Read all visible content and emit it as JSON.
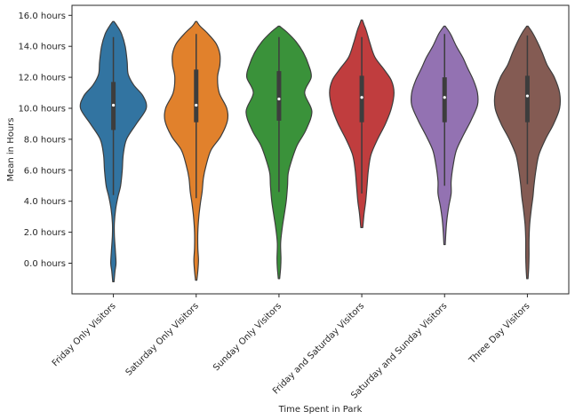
{
  "chart_data": {
    "type": "violin",
    "xlabel": "Time Spent in Park",
    "ylabel": "Mean in Hours",
    "ylim": [
      -2.4,
      16.4
    ],
    "y_ticks": [
      {
        "value": 0,
        "label": "0.0 hours"
      },
      {
        "value": 2,
        "label": "2.0 hours"
      },
      {
        "value": 4,
        "label": "4.0 hours"
      },
      {
        "value": 6,
        "label": "6.0 hours"
      },
      {
        "value": 8,
        "label": "8.0 hours"
      },
      {
        "value": 10,
        "label": "10.0 hours"
      },
      {
        "value": 12,
        "label": "12.0 hours"
      },
      {
        "value": 14,
        "label": "14.0 hours"
      },
      {
        "value": 16,
        "label": "16.0 hours"
      }
    ],
    "grid": false,
    "legend": "none",
    "categories": [
      "Friday Only Visitors",
      "Saturday Only Visitors",
      "Sunday Only Visitors",
      "Friday and Saturday Visitors",
      "Saturday and Sunday Visitors",
      "Three Day Visitors"
    ],
    "series": [
      {
        "category": "Friday Only Visitors",
        "color": "#3274a1",
        "min": -1.2,
        "q1": 8.6,
        "median": 10.2,
        "q3": 11.7,
        "max": 15.6,
        "whisker_low": 4.4,
        "whisker_high": 14.6,
        "density": [
          [
            -1.2,
            0.02
          ],
          [
            -0.5,
            0.05
          ],
          [
            0.0,
            0.08
          ],
          [
            0.8,
            0.06
          ],
          [
            1.8,
            0.03
          ],
          [
            2.6,
            0.03
          ],
          [
            3.5,
            0.07
          ],
          [
            4.3,
            0.14
          ],
          [
            5.0,
            0.22
          ],
          [
            6.0,
            0.27
          ],
          [
            7.0,
            0.3
          ],
          [
            8.0,
            0.4
          ],
          [
            9.0,
            0.7
          ],
          [
            10.0,
            1.0
          ],
          [
            10.8,
            0.9
          ],
          [
            11.5,
            0.62
          ],
          [
            12.2,
            0.45
          ],
          [
            13.0,
            0.42
          ],
          [
            14.0,
            0.36
          ],
          [
            14.8,
            0.25
          ],
          [
            15.3,
            0.12
          ],
          [
            15.6,
            0.02
          ]
        ]
      },
      {
        "category": "Saturday Only Visitors",
        "color": "#e1812c",
        "min": -1.1,
        "q1": 9.1,
        "median": 10.2,
        "q3": 12.5,
        "max": 15.6,
        "whisker_low": 4.2,
        "whisker_high": 14.8,
        "density": [
          [
            -1.1,
            0.02
          ],
          [
            -0.5,
            0.05
          ],
          [
            0.2,
            0.07
          ],
          [
            1.0,
            0.05
          ],
          [
            2.0,
            0.05
          ],
          [
            3.0,
            0.08
          ],
          [
            3.9,
            0.13
          ],
          [
            4.6,
            0.18
          ],
          [
            5.5,
            0.22
          ],
          [
            6.3,
            0.3
          ],
          [
            7.3,
            0.45
          ],
          [
            8.2,
            0.75
          ],
          [
            9.2,
            0.95
          ],
          [
            10.0,
            0.93
          ],
          [
            11.0,
            0.7
          ],
          [
            12.0,
            0.65
          ],
          [
            12.8,
            0.72
          ],
          [
            13.5,
            0.72
          ],
          [
            14.2,
            0.6
          ],
          [
            14.9,
            0.32
          ],
          [
            15.3,
            0.12
          ],
          [
            15.6,
            0.02
          ]
        ]
      },
      {
        "category": "Sunday Only Visitors",
        "color": "#3a923a",
        "min": -1.0,
        "q1": 9.2,
        "median": 10.6,
        "q3": 12.4,
        "max": 15.3,
        "whisker_low": 4.6,
        "whisker_high": 14.6,
        "density": [
          [
            -1.0,
            0.02
          ],
          [
            -0.3,
            0.05
          ],
          [
            0.3,
            0.06
          ],
          [
            1.3,
            0.05
          ],
          [
            2.3,
            0.1
          ],
          [
            3.0,
            0.15
          ],
          [
            4.0,
            0.22
          ],
          [
            5.0,
            0.26
          ],
          [
            5.8,
            0.28
          ],
          [
            6.6,
            0.38
          ],
          [
            7.6,
            0.55
          ],
          [
            8.6,
            0.82
          ],
          [
            9.8,
            1.0
          ],
          [
            11.0,
            0.78
          ],
          [
            12.0,
            0.98
          ],
          [
            12.8,
            0.9
          ],
          [
            13.6,
            0.74
          ],
          [
            14.3,
            0.52
          ],
          [
            14.9,
            0.25
          ],
          [
            15.3,
            0.02
          ]
        ]
      },
      {
        "category": "Friday and Saturday Visitors",
        "color": "#c03d3e",
        "min": 2.3,
        "q1": 9.1,
        "median": 10.7,
        "q3": 12.1,
        "max": 15.7,
        "whisker_low": 4.5,
        "whisker_high": 14.6,
        "density": [
          [
            2.3,
            0.03
          ],
          [
            3.2,
            0.07
          ],
          [
            4.0,
            0.12
          ],
          [
            5.0,
            0.16
          ],
          [
            6.0,
            0.2
          ],
          [
            7.0,
            0.28
          ],
          [
            8.0,
            0.48
          ],
          [
            9.0,
            0.72
          ],
          [
            10.0,
            0.9
          ],
          [
            11.0,
            0.98
          ],
          [
            11.8,
            0.9
          ],
          [
            12.5,
            0.68
          ],
          [
            13.3,
            0.4
          ],
          [
            14.2,
            0.25
          ],
          [
            15.0,
            0.14
          ],
          [
            15.4,
            0.07
          ],
          [
            15.7,
            0.02
          ]
        ]
      },
      {
        "category": "Saturday and Sunday Visitors",
        "color": "#9372b2",
        "min": 1.2,
        "q1": 9.1,
        "median": 10.7,
        "q3": 12.0,
        "max": 15.3,
        "whisker_low": 5.0,
        "whisker_high": 14.8,
        "density": [
          [
            1.2,
            0.02
          ],
          [
            2.0,
            0.04
          ],
          [
            2.8,
            0.07
          ],
          [
            3.7,
            0.13
          ],
          [
            4.5,
            0.2
          ],
          [
            5.3,
            0.2
          ],
          [
            6.3,
            0.26
          ],
          [
            7.3,
            0.36
          ],
          [
            8.3,
            0.58
          ],
          [
            9.2,
            0.8
          ],
          [
            10.2,
            1.0
          ],
          [
            11.0,
            1.0
          ],
          [
            11.8,
            0.88
          ],
          [
            12.6,
            0.7
          ],
          [
            13.3,
            0.55
          ],
          [
            14.0,
            0.36
          ],
          [
            14.8,
            0.18
          ],
          [
            15.3,
            0.02
          ]
        ]
      },
      {
        "category": "Three Day Visitors",
        "color": "#845b53",
        "min": -1.0,
        "q1": 9.1,
        "median": 10.8,
        "q3": 12.1,
        "max": 15.3,
        "whisker_low": 5.1,
        "whisker_high": 14.7,
        "density": [
          [
            -1.0,
            0.02
          ],
          [
            -0.3,
            0.04
          ],
          [
            0.5,
            0.05
          ],
          [
            1.5,
            0.05
          ],
          [
            2.5,
            0.07
          ],
          [
            3.5,
            0.12
          ],
          [
            4.3,
            0.17
          ],
          [
            5.0,
            0.2
          ],
          [
            6.0,
            0.26
          ],
          [
            7.0,
            0.35
          ],
          [
            8.0,
            0.55
          ],
          [
            9.0,
            0.8
          ],
          [
            10.0,
            0.98
          ],
          [
            11.0,
            0.98
          ],
          [
            12.0,
            0.82
          ],
          [
            12.8,
            0.6
          ],
          [
            13.6,
            0.45
          ],
          [
            14.3,
            0.3
          ],
          [
            14.9,
            0.15
          ],
          [
            15.3,
            0.02
          ]
        ]
      }
    ]
  }
}
